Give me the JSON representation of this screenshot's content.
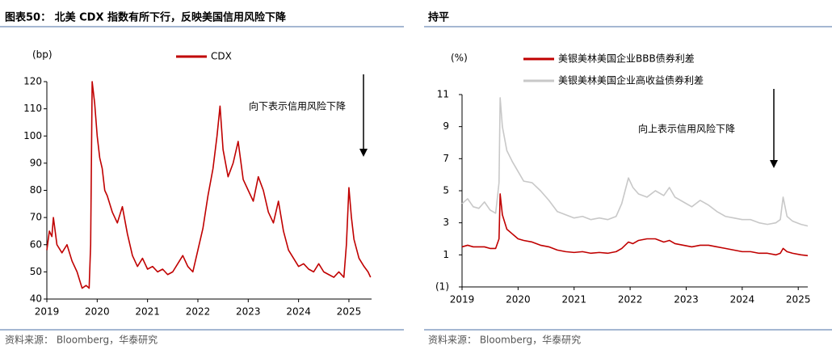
{
  "chart_data": [
    {
      "type": "line",
      "title": "图表50： 北美 CDX 指数有所下行，反映美国信用风险下降",
      "y_label": "(bp)",
      "annotation": "向下表示信用风险下降",
      "note": "资料来源： Bloomberg，华泰研究",
      "x": [
        2019.0,
        2019.05,
        2019.1,
        2019.13,
        2019.2,
        2019.3,
        2019.4,
        2019.5,
        2019.6,
        2019.65,
        2019.7,
        2019.78,
        2019.84,
        2019.87,
        2019.9,
        2019.95,
        2020.0,
        2020.05,
        2020.1,
        2020.15,
        2020.2,
        2020.3,
        2020.4,
        2020.5,
        2020.6,
        2020.7,
        2020.8,
        2020.9,
        2021.0,
        2021.1,
        2021.2,
        2021.3,
        2021.4,
        2021.5,
        2021.6,
        2021.7,
        2021.8,
        2021.9,
        2022.0,
        2022.1,
        2022.2,
        2022.3,
        2022.38,
        2022.44,
        2022.5,
        2022.6,
        2022.7,
        2022.8,
        2022.9,
        2023.0,
        2023.1,
        2023.2,
        2023.3,
        2023.4,
        2023.5,
        2023.6,
        2023.7,
        2023.8,
        2023.9,
        2024.0,
        2024.1,
        2024.2,
        2024.3,
        2024.4,
        2024.5,
        2024.6,
        2024.7,
        2024.8,
        2024.9,
        2024.95,
        2025.0,
        2025.05,
        2025.1,
        2025.2,
        2025.3,
        2025.38,
        2025.43
      ],
      "series": [
        {
          "name": "CDX",
          "color": "#c00000",
          "values": [
            58,
            65,
            63,
            70,
            60,
            57,
            60,
            54,
            50,
            47,
            44,
            45,
            44,
            60,
            120,
            112,
            100,
            92,
            88,
            80,
            78,
            72,
            68,
            74,
            64,
            56,
            52,
            55,
            51,
            52,
            50,
            51,
            49,
            50,
            53,
            56,
            52,
            50,
            58,
            66,
            78,
            88,
            100,
            111,
            95,
            85,
            90,
            98,
            84,
            80,
            76,
            85,
            80,
            72,
            68,
            76,
            65,
            58,
            55,
            52,
            53,
            51,
            50,
            53,
            50,
            49,
            48,
            50,
            48,
            60,
            81,
            70,
            62,
            55,
            52,
            50,
            48
          ]
        }
      ],
      "xlim": [
        2019,
        2025.45
      ],
      "xticks": [
        2019,
        2020,
        2021,
        2022,
        2023,
        2024,
        2025
      ],
      "ylim": [
        40,
        120
      ],
      "yticks": [
        40,
        50,
        60,
        70,
        80,
        90,
        100,
        110,
        120
      ],
      "grid": false
    },
    {
      "type": "line",
      "title": "持平",
      "y_label": "(%)",
      "annotation": "向上表示信用风险下降",
      "note": "资料来源： Bloomberg，华泰研究",
      "x": [
        2019,
        2019.1,
        2019.2,
        2019.3,
        2019.4,
        2019.5,
        2019.6,
        2019.66,
        2019.68,
        2019.72,
        2019.8,
        2019.9,
        2020.0,
        2020.1,
        2020.25,
        2020.4,
        2020.55,
        2020.7,
        2020.85,
        2021.0,
        2021.15,
        2021.3,
        2021.45,
        2021.6,
        2021.75,
        2021.85,
        2021.97,
        2022.05,
        2022.15,
        2022.3,
        2022.45,
        2022.6,
        2022.7,
        2022.8,
        2022.95,
        2023.1,
        2023.25,
        2023.4,
        2023.55,
        2023.7,
        2023.85,
        2024.0,
        2024.15,
        2024.3,
        2024.45,
        2024.6,
        2024.68,
        2024.73,
        2024.8,
        2024.9,
        2025.05,
        2025.17
      ],
      "series": [
        {
          "name": "美银美林美国企业BBB债券利差",
          "color": "#c00000",
          "values": [
            1.5,
            1.6,
            1.5,
            1.5,
            1.5,
            1.4,
            1.4,
            2.0,
            4.8,
            3.5,
            2.6,
            2.3,
            2.0,
            1.9,
            1.8,
            1.6,
            1.5,
            1.3,
            1.2,
            1.15,
            1.2,
            1.1,
            1.15,
            1.1,
            1.2,
            1.4,
            1.8,
            1.7,
            1.9,
            2.0,
            2.0,
            1.8,
            1.9,
            1.7,
            1.6,
            1.5,
            1.6,
            1.6,
            1.5,
            1.4,
            1.3,
            1.2,
            1.2,
            1.1,
            1.1,
            1.0,
            1.1,
            1.4,
            1.2,
            1.1,
            1.0,
            0.95
          ]
        },
        {
          "name": "美银美林美国企业高收益债券利差",
          "color": "#c8c8c8",
          "values": [
            4.2,
            4.5,
            4.0,
            3.9,
            4.3,
            3.8,
            3.6,
            5.5,
            10.8,
            9.0,
            7.5,
            6.8,
            6.2,
            5.6,
            5.5,
            5.0,
            4.4,
            3.7,
            3.5,
            3.3,
            3.4,
            3.2,
            3.3,
            3.2,
            3.4,
            4.2,
            5.8,
            5.2,
            4.8,
            4.6,
            5.0,
            4.7,
            5.2,
            4.6,
            4.3,
            4.0,
            4.4,
            4.1,
            3.7,
            3.4,
            3.3,
            3.2,
            3.2,
            3.0,
            2.9,
            3.0,
            3.2,
            4.6,
            3.4,
            3.1,
            2.9,
            2.8
          ]
        }
      ],
      "xlim": [
        2019,
        2025.17
      ],
      "xticks": [
        2019,
        2020,
        2021,
        2022,
        2023,
        2024,
        2025
      ],
      "ylim": [
        -1,
        11
      ],
      "yticks": [
        {
          "value": -1,
          "label": "(1)"
        },
        1,
        3,
        5,
        7,
        9,
        11
      ],
      "grid": false
    }
  ]
}
